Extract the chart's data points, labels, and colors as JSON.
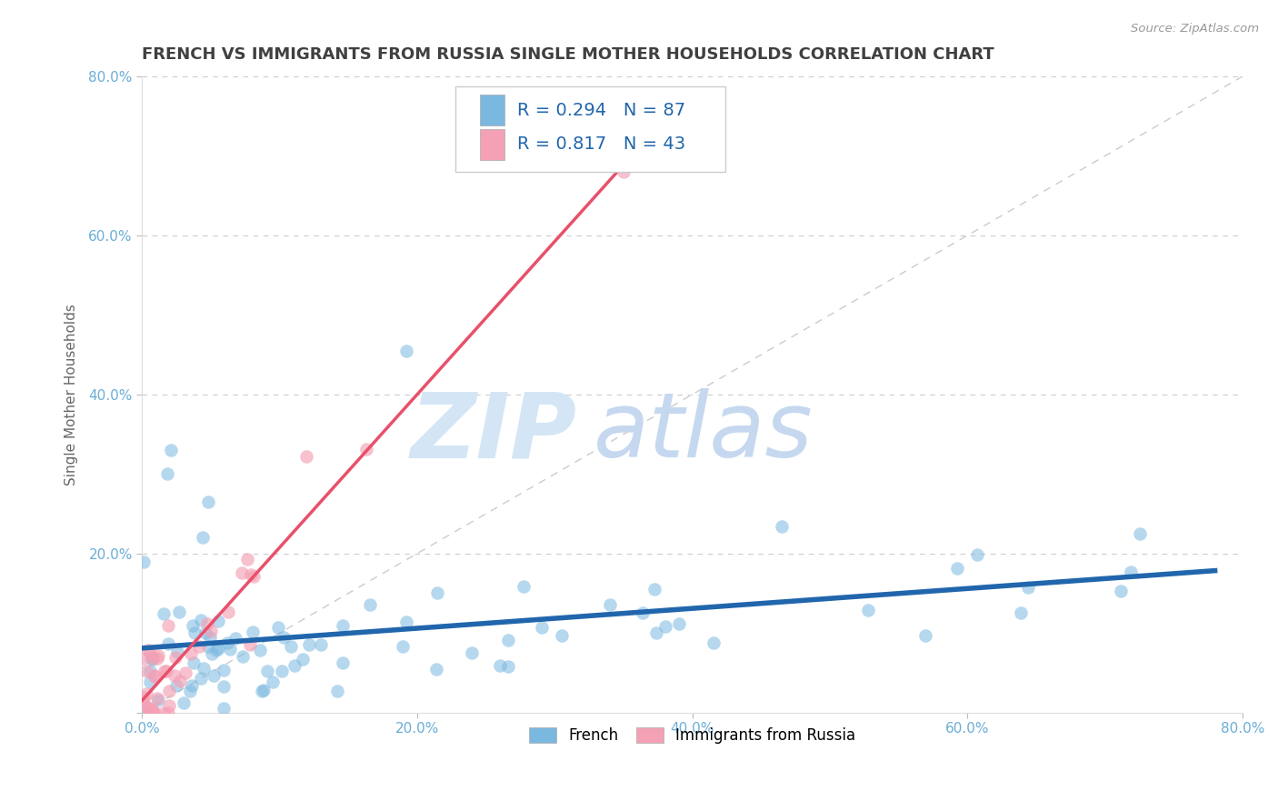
{
  "title": "FRENCH VS IMMIGRANTS FROM RUSSIA SINGLE MOTHER HOUSEHOLDS CORRELATION CHART",
  "source": "Source: ZipAtlas.com",
  "ylabel": "Single Mother Households",
  "xlim": [
    0.0,
    0.8
  ],
  "ylim": [
    0.0,
    0.8
  ],
  "xticks": [
    0.0,
    0.2,
    0.4,
    0.6,
    0.8
  ],
  "yticks": [
    0.0,
    0.2,
    0.4,
    0.6,
    0.8
  ],
  "xticklabels": [
    "0.0%",
    "20.0%",
    "40.0%",
    "60.0%",
    "80.0%"
  ],
  "yticklabels": [
    "",
    "20.0%",
    "40.0%",
    "60.0%",
    "80.0%"
  ],
  "french_R": 0.294,
  "french_N": 87,
  "russia_R": 0.817,
  "russia_N": 43,
  "french_color": "#7bb8e0",
  "russia_color": "#f4a0b5",
  "french_line_color": "#2166ac",
  "russia_line_color": "#e8506a",
  "diag_color": "#cccccc",
  "watermark_zip_color": "#d4e5f5",
  "watermark_atlas_color": "#c5d8ef",
  "background_color": "#ffffff",
  "grid_color": "#cccccc",
  "title_color": "#404040",
  "tick_color": "#6baed6",
  "legend_text_color": "#2166ac",
  "title_fontsize": 13,
  "axis_label_fontsize": 11,
  "tick_fontsize": 11,
  "legend_fontsize": 14
}
